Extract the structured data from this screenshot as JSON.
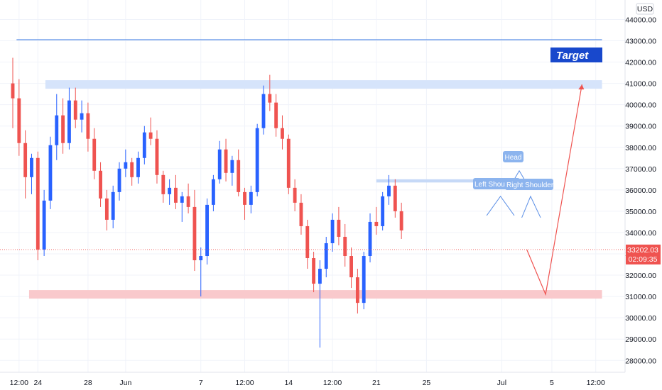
{
  "chart_data": {
    "type": "candlestick",
    "currency_label": "USD",
    "ylim": [
      27500,
      45500
    ],
    "y_ticks": [
      28000,
      29000,
      30000,
      31000,
      32000,
      33000,
      34000,
      35000,
      36000,
      37000,
      38000,
      39000,
      40000,
      41000,
      42000,
      43000,
      44000
    ],
    "y_tick_labels": [
      "28000.00",
      "29000.00",
      "30000.00",
      "31000.00",
      "32000.00",
      "33000.00",
      "34000.00",
      "35000.00",
      "36000.00",
      "37000.00",
      "38000.00",
      "39000.00",
      "40000.00",
      "41000.00",
      "42000.00",
      "43000.00",
      "44000.00"
    ],
    "x_ticks": [
      {
        "label": "12:00",
        "t": 0.5
      },
      {
        "label": "24",
        "t": 2
      },
      {
        "label": "28",
        "t": 6
      },
      {
        "label": "Jun",
        "t": 9
      },
      {
        "label": "7",
        "t": 15
      },
      {
        "label": "12:00",
        "t": 18.5
      },
      {
        "label": "14",
        "t": 22
      },
      {
        "label": "12:00",
        "t": 25.5
      },
      {
        "label": "21",
        "t": 29
      },
      {
        "label": "25",
        "t": 33
      },
      {
        "label": "Jul",
        "t": 39
      },
      {
        "label": "5",
        "t": 43
      },
      {
        "label": "12:00",
        "t": 46.5
      }
    ],
    "x_range": [
      -0.3,
      47.8
    ],
    "last_price": {
      "value": 33202.03,
      "label": "33202.03",
      "countdown": "02:09:35",
      "color": "#ef5350"
    },
    "colors": {
      "up": "#2962ff",
      "down": "#ef5350",
      "grid": "#f0f3fa",
      "target_box": "#1848cc"
    },
    "candles_4h": [
      [
        0.0,
        41000,
        42200,
        38900,
        40300
      ],
      [
        0.5,
        40300,
        41200,
        37600,
        38200
      ],
      [
        1.0,
        38200,
        38800,
        35600,
        36600
      ],
      [
        1.5,
        36600,
        37700,
        35800,
        37500
      ],
      [
        2.0,
        37500,
        37800,
        32700,
        33200
      ],
      [
        2.5,
        33200,
        36000,
        32900,
        35500
      ],
      [
        3.0,
        35500,
        38500,
        35100,
        38100
      ],
      [
        3.5,
        38100,
        40500,
        37400,
        39500
      ],
      [
        4.0,
        39500,
        40300,
        37700,
        38200
      ],
      [
        4.5,
        38200,
        40800,
        37900,
        40200
      ],
      [
        5.0,
        40200,
        40800,
        38900,
        39300
      ],
      [
        5.5,
        39300,
        40200,
        38700,
        39600
      ],
      [
        6.0,
        39600,
        40100,
        37800,
        38400
      ],
      [
        6.5,
        38400,
        38900,
        36500,
        36900
      ],
      [
        7.0,
        36900,
        37300,
        35200,
        35600
      ],
      [
        7.5,
        35600,
        36000,
        34100,
        34600
      ],
      [
        8.0,
        34600,
        36200,
        34200,
        35900
      ],
      [
        8.5,
        35900,
        37300,
        35500,
        37000
      ],
      [
        9.0,
        37000,
        37900,
        36600,
        37300
      ],
      [
        9.5,
        37300,
        37500,
        36200,
        36600
      ],
      [
        10.0,
        36600,
        37800,
        36300,
        37500
      ],
      [
        10.5,
        37500,
        39000,
        37200,
        38700
      ],
      [
        11.0,
        38700,
        39400,
        38100,
        38400
      ],
      [
        11.5,
        38400,
        38800,
        36300,
        36700
      ],
      [
        12.0,
        36700,
        36900,
        35400,
        35800
      ],
      [
        12.5,
        35800,
        36500,
        35300,
        36100
      ],
      [
        13.0,
        36100,
        36700,
        35100,
        35400
      ],
      [
        13.5,
        35400,
        35900,
        34500,
        35700
      ],
      [
        14.0,
        35700,
        36300,
        34900,
        35200
      ],
      [
        14.5,
        35200,
        36000,
        32200,
        32700
      ],
      [
        15.0,
        32700,
        33300,
        31000,
        32900
      ],
      [
        15.5,
        32900,
        35600,
        32500,
        35300
      ],
      [
        16.0,
        35300,
        36700,
        35000,
        36500
      ],
      [
        16.5,
        36500,
        38300,
        36300,
        37900
      ],
      [
        17.0,
        37900,
        38400,
        36400,
        36800
      ],
      [
        17.5,
        36800,
        37600,
        36200,
        37400
      ],
      [
        18.0,
        37400,
        37900,
        35700,
        35900
      ],
      [
        18.5,
        35900,
        36100,
        34600,
        35300
      ],
      [
        19.0,
        35300,
        36200,
        34900,
        35900
      ],
      [
        19.5,
        35900,
        39100,
        35700,
        38900
      ],
      [
        20.0,
        38900,
        40900,
        38600,
        40500
      ],
      [
        20.5,
        40500,
        41400,
        39700,
        40100
      ],
      [
        21.0,
        40100,
        40500,
        38500,
        38900
      ],
      [
        21.5,
        38900,
        39500,
        37900,
        38400
      ],
      [
        22.0,
        38400,
        38600,
        35800,
        36100
      ],
      [
        22.5,
        36100,
        36500,
        35000,
        35400
      ],
      [
        23.0,
        35400,
        35800,
        33900,
        34300
      ],
      [
        23.5,
        34300,
        34600,
        32300,
        32800
      ],
      [
        24.0,
        32800,
        33100,
        31200,
        31600
      ],
      [
        24.5,
        31600,
        32700,
        28600,
        32300
      ],
      [
        25.0,
        32300,
        33800,
        31900,
        33500
      ],
      [
        25.5,
        33500,
        34900,
        33100,
        34600
      ],
      [
        26.0,
        34600,
        35200,
        33400,
        33800
      ],
      [
        26.5,
        33800,
        34400,
        32400,
        32900
      ],
      [
        27.0,
        32900,
        33300,
        31400,
        31900
      ],
      [
        27.5,
        31900,
        32300,
        30200,
        30700
      ],
      [
        28.0,
        30700,
        33100,
        30400,
        32900
      ],
      [
        28.5,
        32900,
        34900,
        32600,
        34500
      ],
      [
        29.0,
        34500,
        35200,
        33900,
        34300
      ],
      [
        29.5,
        34300,
        35900,
        34100,
        35700
      ],
      [
        30.0,
        35700,
        36700,
        35300,
        36200
      ],
      [
        30.5,
        36200,
        36500,
        34700,
        35000
      ],
      [
        31.0,
        35000,
        35400,
        33700,
        34100
      ]
    ],
    "annotations": {
      "resistance_band": {
        "t0": 2.6,
        "t1": 47.0,
        "y_low": 40750,
        "y_high": 41150
      },
      "support_band": {
        "t0": 1.3,
        "t1": 47.0,
        "y_low": 30900,
        "y_high": 31300
      },
      "top_line": {
        "t0": 0.3,
        "t1": 47.0,
        "y": 43050
      },
      "neckline_band": {
        "t0": 29.0,
        "t1": 40.8,
        "y_low": 36350,
        "y_high": 36500
      },
      "target_label": "Target",
      "head_label": "Head",
      "left_shoulder_label": "Left Shoulder",
      "right_shoulder_label": "Right Shoulder",
      "projection_path": [
        [
          41.0,
          33200
        ],
        [
          42.5,
          31100
        ],
        [
          45.4,
          40950
        ]
      ],
      "pattern_peaks": [
        {
          "t0": 37.8,
          "tm": 38.9,
          "t1": 40.0,
          "y_base": 34800,
          "y_peak": 35700
        },
        {
          "t0": 39.6,
          "tm": 40.4,
          "t1": 41.2,
          "y_base": 36100,
          "y_peak": 36900
        },
        {
          "t0": 40.6,
          "tm": 41.3,
          "t1": 42.1,
          "y_base": 34700,
          "y_peak": 35700
        }
      ]
    }
  }
}
